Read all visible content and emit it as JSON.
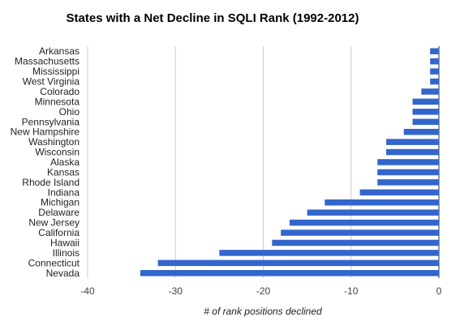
{
  "chart_data": {
    "type": "bar",
    "orientation": "horizontal",
    "title": "States with a Net Decline in SQLI Rank (1992-2012)",
    "xlabel": "# of rank positions declined",
    "ylabel": "",
    "xlim": [
      -40,
      0
    ],
    "xticks": [
      -40,
      -30,
      -20,
      -10,
      0
    ],
    "grid": true,
    "legend": "none",
    "bar_color": "#3366cc",
    "categories": [
      "Arkansas",
      "Massachusetts",
      "Mississippi",
      "West Virginia",
      "Colorado",
      "Minnesota",
      "Ohio",
      "Pennsylvania",
      "New Hampshire",
      "Washington",
      "Wisconsin",
      "Alaska",
      "Kansas",
      "Rhode Island",
      "Indiana",
      "Michigan",
      "Delaware",
      "New Jersey",
      "California",
      "Hawaii",
      "Illinois",
      "Connecticut",
      "Nevada"
    ],
    "values": [
      -1,
      -1,
      -1,
      -1,
      -2,
      -3,
      -3,
      -3,
      -4,
      -6,
      -6,
      -7,
      -7,
      -7,
      -9,
      -13,
      -15,
      -17,
      -18,
      -19,
      -25,
      -32,
      -34
    ]
  }
}
